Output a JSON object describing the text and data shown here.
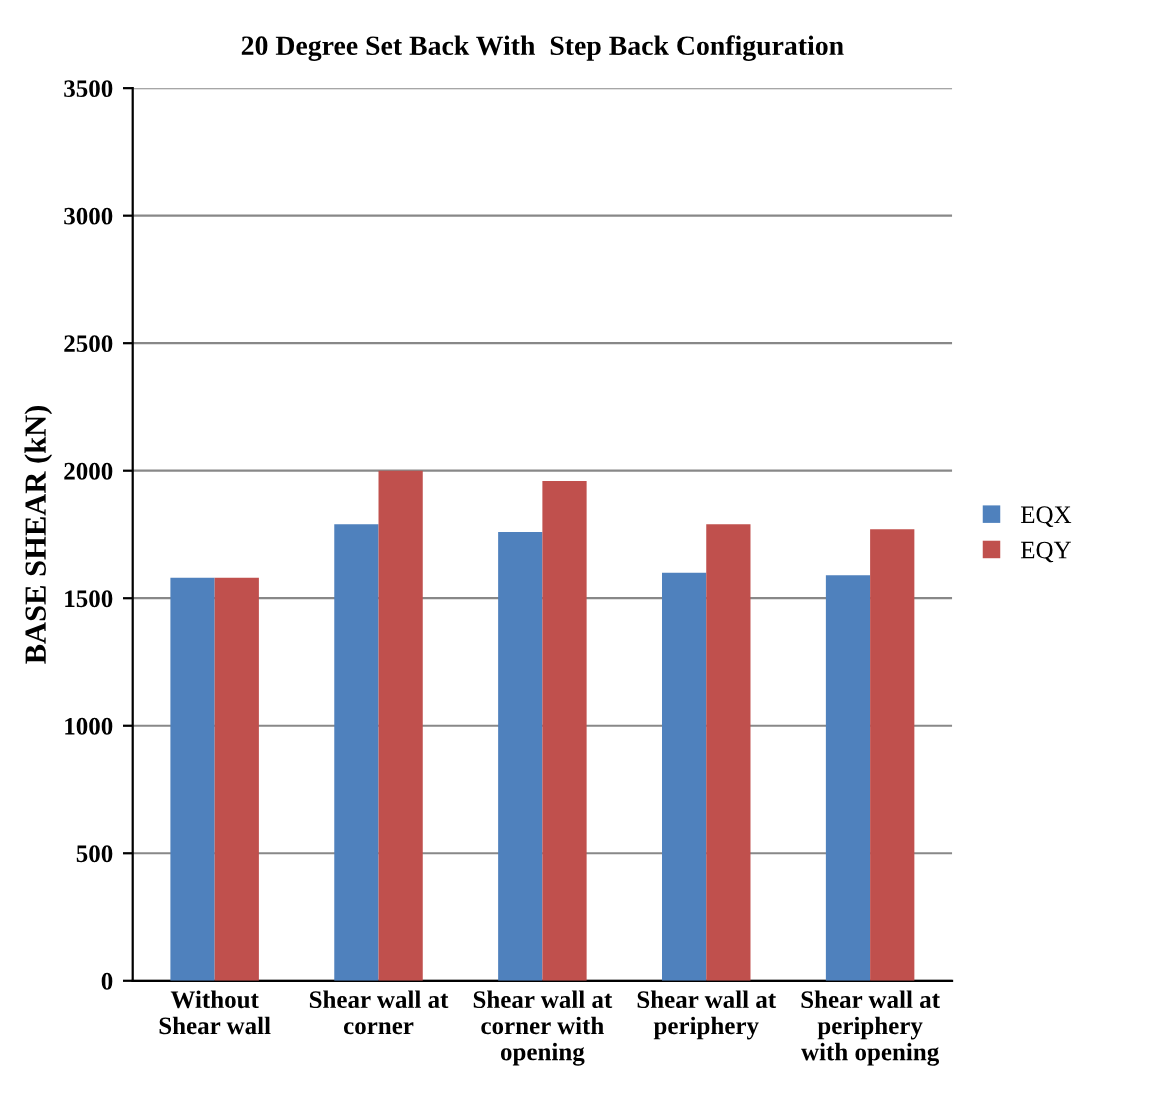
{
  "chart_data": {
    "type": "bar",
    "title": "20 Degree Set Back With  Step Back Configuration",
    "ylabel": "BASE SHEAR (kN)",
    "categories": [
      "Without\nShear wall",
      "Shear wall at\ncorner",
      "Shear wall at\ncorner with\nopening",
      "Shear wall at\nperiphery",
      "Shear wall at\nperiphery\nwith opening"
    ],
    "series": [
      {
        "name": "EQX",
        "color": "#4f81bd",
        "values": [
          1580,
          1790,
          1760,
          1600,
          1590
        ]
      },
      {
        "name": "EQY",
        "color": "#c0504d",
        "values": [
          1580,
          2000,
          1960,
          1790,
          1770
        ]
      }
    ],
    "ylim": [
      0,
      3500
    ],
    "yticks": [
      0,
      500,
      1000,
      1500,
      2000,
      2500,
      3000,
      3500
    ],
    "grid": "y",
    "legend": "right"
  }
}
